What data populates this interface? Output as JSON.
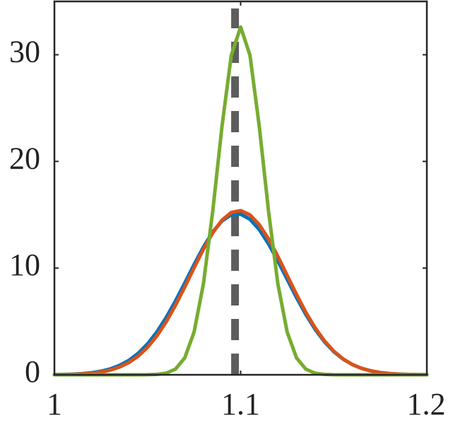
{
  "chart_data": {
    "type": "line",
    "x": [
      1,
      1.005,
      1.01,
      1.015,
      1.02,
      1.025,
      1.03,
      1.035,
      1.04,
      1.045,
      1.05,
      1.055,
      1.06,
      1.065,
      1.07,
      1.075,
      1.08,
      1.085,
      1.09,
      1.095,
      1.1,
      1.105,
      1.11,
      1.115,
      1.12,
      1.125,
      1.13,
      1.135,
      1.14,
      1.145,
      1.15,
      1.155,
      1.16,
      1.165,
      1.17,
      1.175,
      1.18,
      1.185,
      1.19,
      1.195,
      1.2
    ],
    "series": [
      {
        "color": "#0072BD",
        "values": [
          0.02,
          0.03,
          0.06,
          0.11,
          0.19,
          0.33,
          0.55,
          0.88,
          1.35,
          2.01,
          2.89,
          4.01,
          5.36,
          6.91,
          8.6,
          10.33,
          11.97,
          13.38,
          14.42,
          15,
          15.06,
          14.58,
          13.62,
          12.27,
          10.67,
          8.95,
          7.24,
          5.66,
          4.26,
          3.1,
          2.17,
          1.47,
          0.96,
          0.6,
          0.37,
          0.21,
          0.12,
          0.07,
          0.03,
          0.02,
          0.01
        ]
      },
      {
        "color": "#D95319",
        "values": [
          0.01,
          0.02,
          0.04,
          0.08,
          0.15,
          0.26,
          0.44,
          0.73,
          1.15,
          1.75,
          2.57,
          3.64,
          4.96,
          6.51,
          8.23,
          10.03,
          11.77,
          13.31,
          14.5,
          15.22,
          15.39,
          14.99,
          14.07,
          12.73,
          11.09,
          9.31,
          7.53,
          5.86,
          4.4,
          3.18,
          2.22,
          1.49,
          0.96,
          0.6,
          0.36,
          0.21,
          0.12,
          0.06,
          0.03,
          0.02,
          0.01
        ]
      },
      {
        "color": "#77AC30",
        "values": [
          0,
          0,
          0,
          0,
          0,
          0,
          0,
          0,
          0,
          0,
          0.01,
          0.04,
          0.15,
          0.53,
          1.59,
          4,
          8.51,
          15.31,
          23.3,
          29.97,
          32.6,
          29.97,
          23.3,
          15.31,
          8.51,
          4,
          1.59,
          0.53,
          0.15,
          0.04,
          0.01,
          0,
          0,
          0,
          0,
          0,
          0,
          0,
          0,
          0,
          0
        ]
      }
    ],
    "vline": {
      "x": 1.097,
      "color": "#555555"
    },
    "xlim": [
      1,
      1.2
    ],
    "xticks": [
      1,
      1.1,
      1.2
    ],
    "ylim": [
      0,
      35
    ],
    "yticks": [
      0,
      10,
      20,
      30
    ],
    "grid": false
  }
}
